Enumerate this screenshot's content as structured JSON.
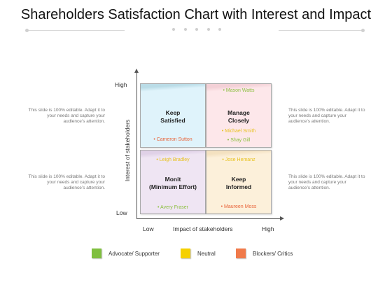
{
  "title": "Shareholders Satisfaction Chart with Interest and Impact",
  "side_notes": {
    "top_left": "This slide is 100% editable. Adapt it to your needs and capture your audience’s attention.",
    "top_right": "This slide is 100% editable. Adapt it to your needs and capture your audience’s attention.",
    "bottom_left": "This slide is 100% editable. Adapt it to your needs and capture your audience’s attention.",
    "bottom_right": "This slide is 100% editable. Adapt it to your needs and capture your audience’s attention."
  },
  "axes": {
    "y_label": "Interest  of stakeholders",
    "y_high": "High",
    "y_low": "Low",
    "x_label": "Impact of stakeholders",
    "x_low": "Low",
    "x_high": "High"
  },
  "quadrants": {
    "top_left": {
      "heading_line1": "Keep",
      "heading_line2": "Satisfied",
      "names": [
        {
          "text": "Cameron  Sutton",
          "color": "#e8643a"
        }
      ]
    },
    "top_right": {
      "heading_line1": "Manage",
      "heading_line2": "Closely",
      "names": [
        {
          "text": "Mason Watts",
          "color": "#8bbf3f"
        },
        {
          "text": "Michael Smith",
          "color": "#e8c21f"
        },
        {
          "text": "Shay Gill",
          "color": "#8bbf3f"
        }
      ]
    },
    "bottom_left": {
      "heading_line1": "Monit",
      "heading_line2": "(Minimum  Effort)",
      "names": [
        {
          "text": "Leigh Bradley",
          "color": "#e8c21f"
        },
        {
          "text": "Avery Fraser",
          "color": "#8bbf3f"
        }
      ]
    },
    "bottom_right": {
      "heading_line1": "Keep",
      "heading_line2": "Informed",
      "names": [
        {
          "text": "Jose Hemanz",
          "color": "#e8c21f"
        },
        {
          "text": "Maureen  Moss",
          "color": "#e8643a"
        }
      ]
    }
  },
  "legend": [
    {
      "label": "Advocate/ Supporter",
      "color": "#7fbf3f"
    },
    {
      "label": "Neutral",
      "color": "#f5d000"
    },
    {
      "label": "Blockers/ Critics",
      "color": "#f07a4a"
    }
  ]
}
